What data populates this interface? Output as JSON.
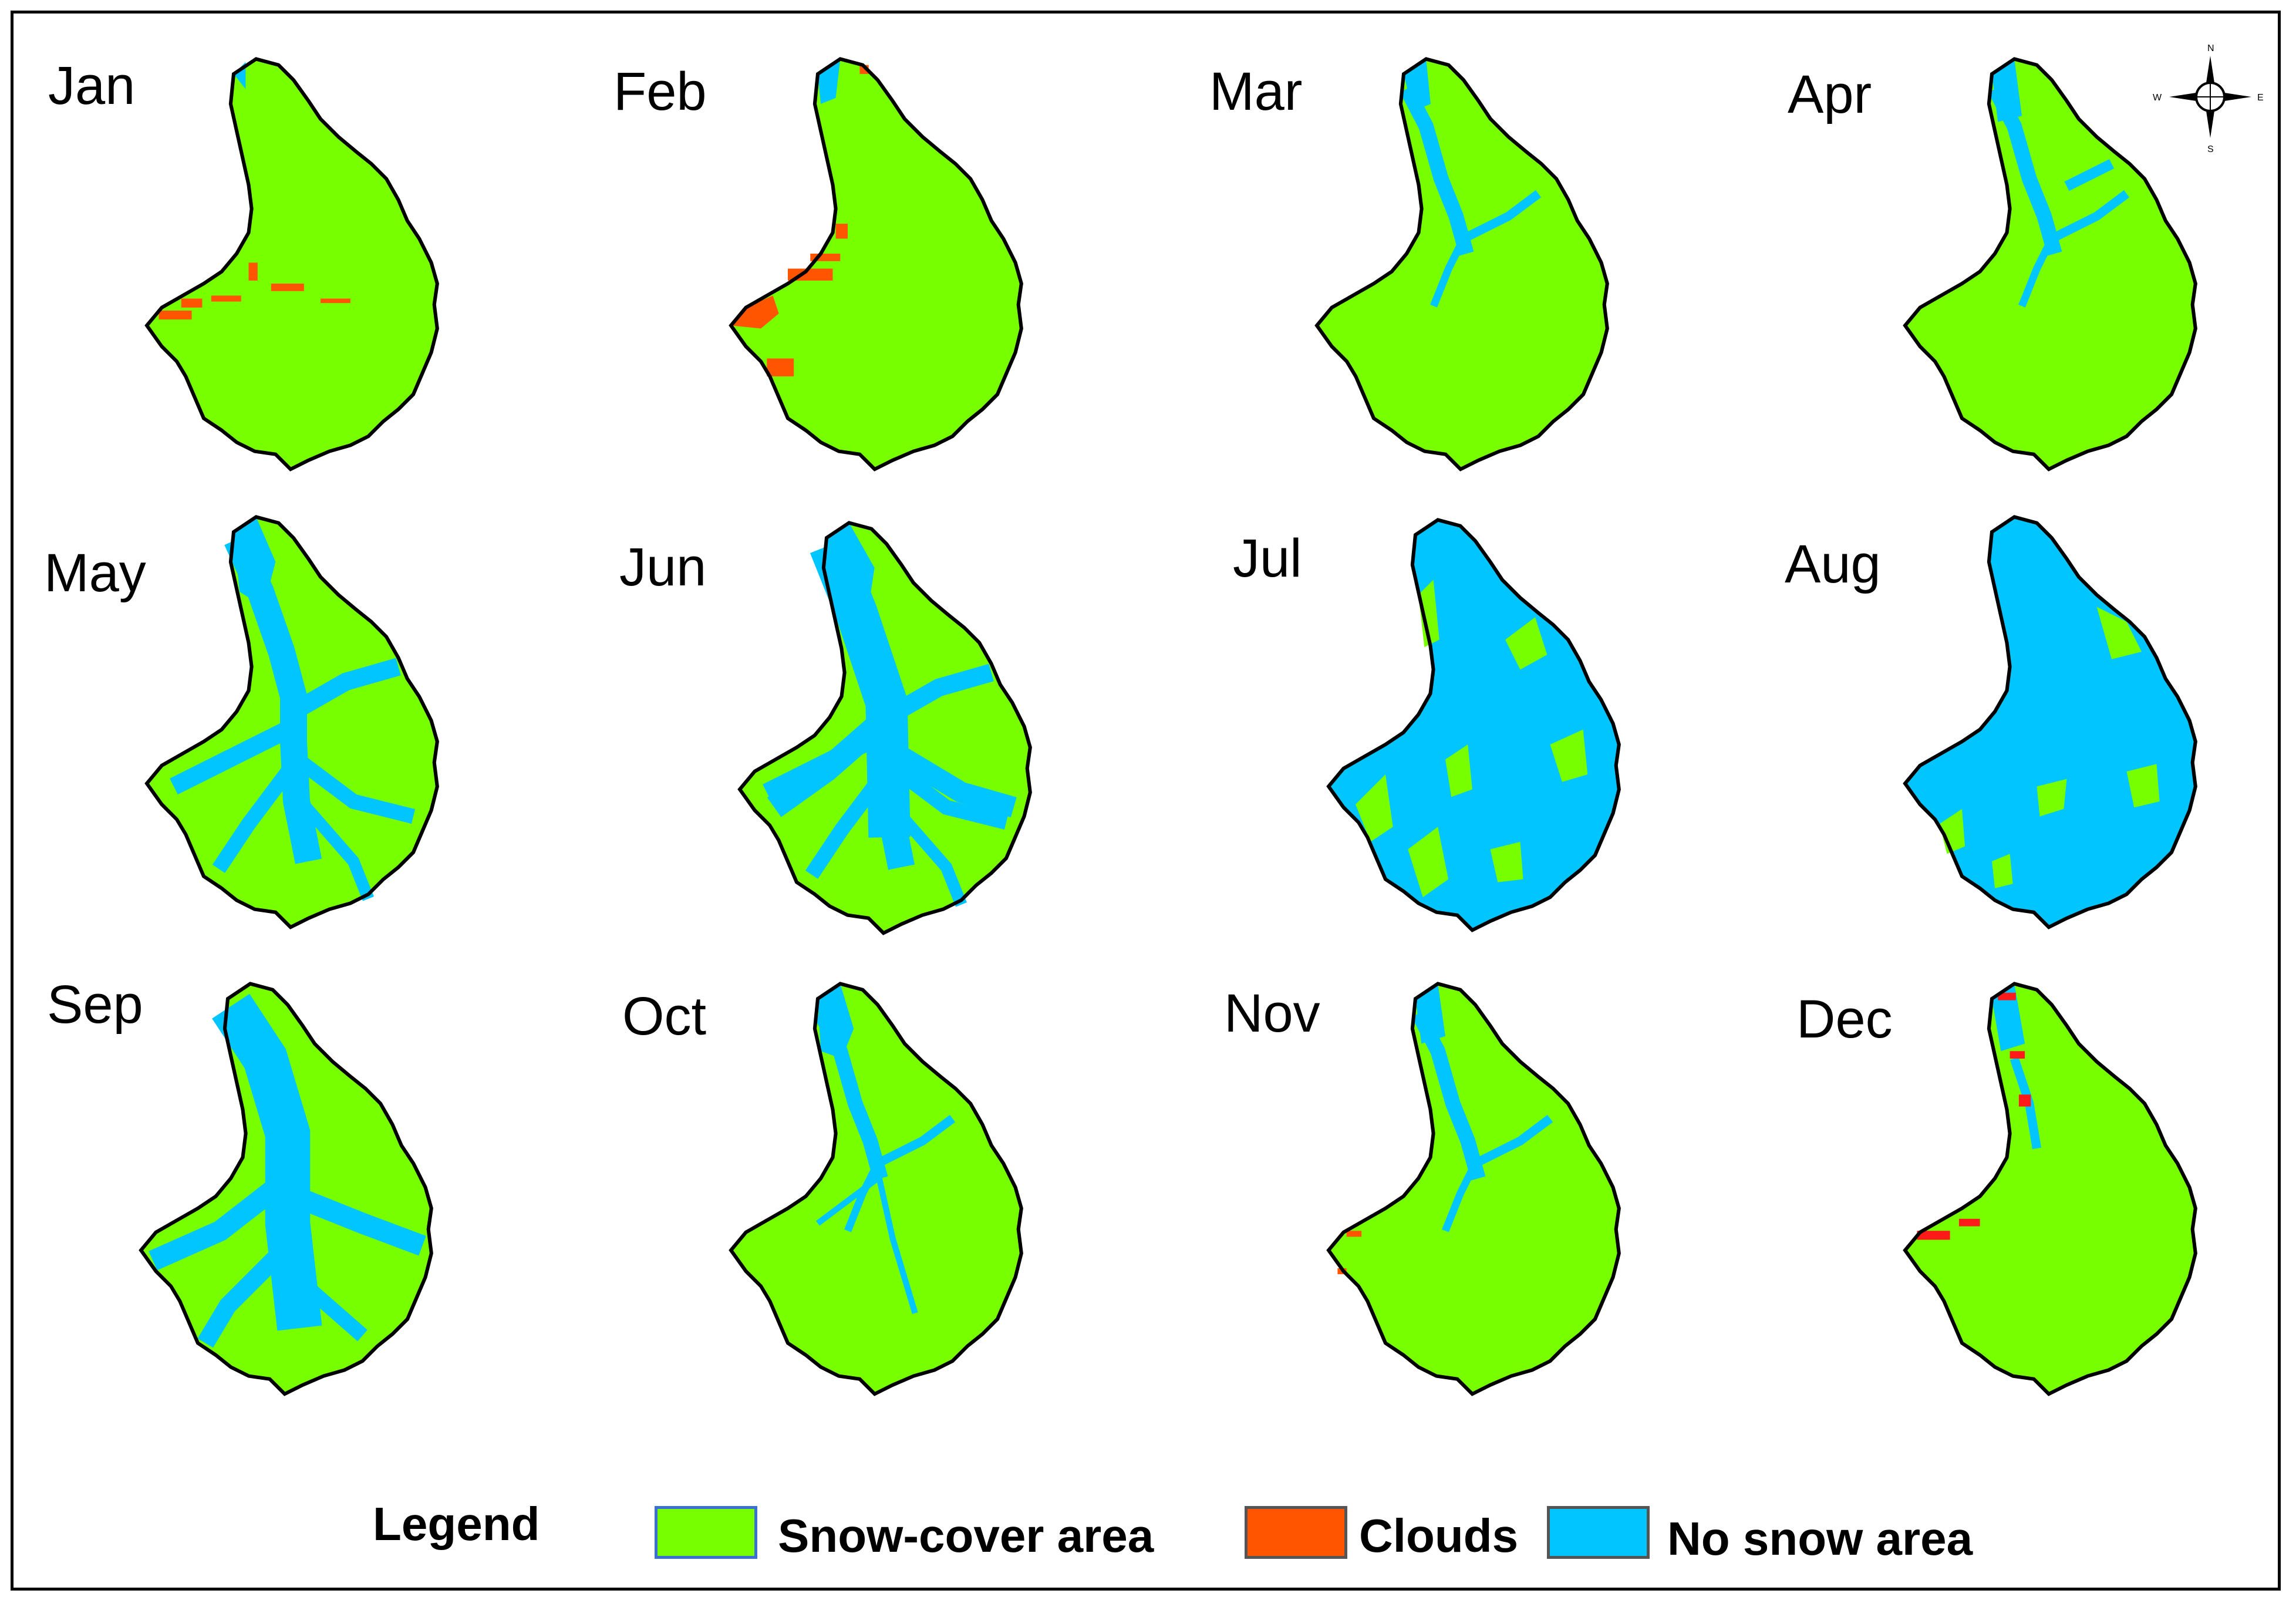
{
  "months": [
    "Jan",
    "Feb",
    "Mar",
    "Apr",
    "May",
    "Jun",
    "Jul",
    "Aug",
    "Sep",
    "Oct",
    "Nov",
    "Dec"
  ],
  "legend": {
    "title": "Legend",
    "items": [
      {
        "label": "Snow-cover area",
        "color": "#77ff00",
        "border": "#3a6fd6"
      },
      {
        "label": "Clouds",
        "color": "#ff5500",
        "border": "#555555"
      },
      {
        "label": "No snow area",
        "color": "#00c5ff",
        "border": "#555555"
      }
    ]
  },
  "compass": {
    "n": "N",
    "s": "S",
    "e": "E",
    "w": "W"
  },
  "colors": {
    "snow": "#77ff00",
    "clouds": "#ff5500",
    "no_snow": "#00c5ff",
    "outline": "#000000"
  }
}
